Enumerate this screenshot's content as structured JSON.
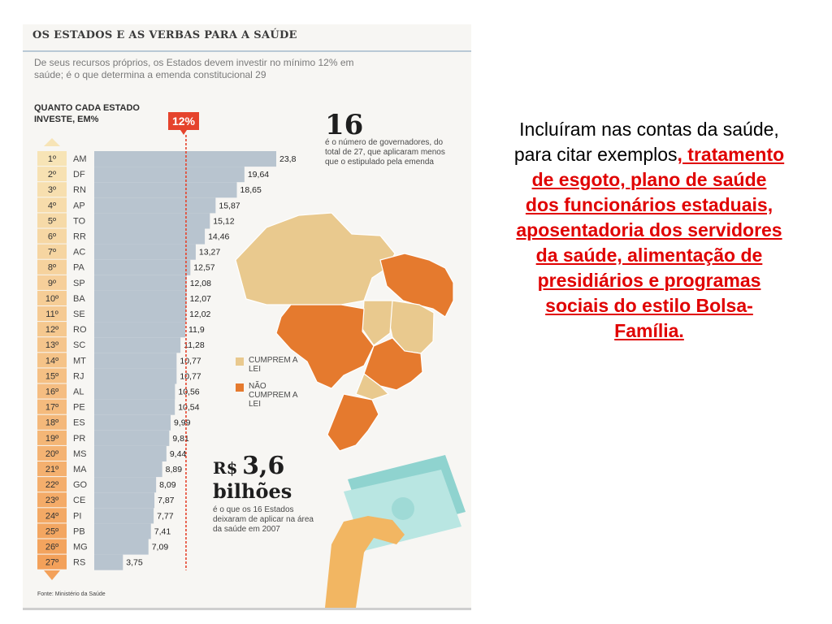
{
  "infographic": {
    "title": "OS ESTADOS E AS VERBAS PARA A SAÚDE",
    "subtitle": "De seus recursos próprios, os Estados devem investir no mínimo 12% em saúde; é o que determina a emenda constitucional 29",
    "chart_heading": "QUANTO CADA ESTADO INVESTE, EM%",
    "threshold_label": "12%",
    "stat1_number": "16",
    "stat1_text": "é o número de governadores, do total de 27, que aplicaram menos que o estipulado pela emenda",
    "legend_cumprem": "CUMPREM A LEI",
    "legend_nao": "NÃO CUMPREM A LEI",
    "money_prefix": "R$",
    "money_value": "3,6",
    "money_unit": "bilhões",
    "money_text": "é o que os 16 Estados deixaram de aplicar na área da saúde em 2007",
    "source": "Fonte: Ministério da Saúde",
    "colors": {
      "comply": "#e9c98e",
      "noncomply": "#e57a2e",
      "rank_top": "#f7e4b6",
      "rank_bottom": "#f3a15a",
      "bar": "#b8c4cf",
      "threshold": "#e5432c"
    }
  },
  "chart_data": {
    "type": "bar",
    "orientation": "horizontal",
    "title": "QUANTO CADA ESTADO INVESTE, EM%",
    "threshold": 12,
    "ranks": [
      "1º",
      "2º",
      "3º",
      "4º",
      "5º",
      "6º",
      "7º",
      "8º",
      "9º",
      "10º",
      "11º",
      "12º",
      "13º",
      "14º",
      "15º",
      "16º",
      "17º",
      "18º",
      "19º",
      "20º",
      "21º",
      "22º",
      "23º",
      "24º",
      "25º",
      "26º",
      "27º"
    ],
    "categories": [
      "AM",
      "DF",
      "RN",
      "AP",
      "TO",
      "RR",
      "AC",
      "PA",
      "SP",
      "BA",
      "SE",
      "RO",
      "SC",
      "MT",
      "RJ",
      "AL",
      "PE",
      "ES",
      "PR",
      "MS",
      "MA",
      "GO",
      "CE",
      "PI",
      "PB",
      "MG",
      "RS"
    ],
    "values": [
      23.8,
      19.64,
      18.65,
      15.87,
      15.12,
      14.46,
      13.27,
      12.57,
      12.08,
      12.07,
      12.02,
      11.9,
      11.28,
      10.77,
      10.77,
      10.56,
      10.54,
      9.99,
      9.81,
      9.44,
      8.89,
      8.09,
      7.87,
      7.77,
      7.41,
      7.09,
      3.75
    ],
    "value_labels": [
      "23,8",
      "19,64",
      "18,65",
      "15,87",
      "15,12",
      "14,46",
      "13,27",
      "12,57",
      "12,08",
      "12,07",
      "12,02",
      "11,9",
      "11,28",
      "10,77",
      "10,77",
      "10,56",
      "10,54",
      "9,99",
      "9,81",
      "9,44",
      "8,89",
      "8,09",
      "7,87",
      "7,77",
      "7,41",
      "7,09",
      "3,75"
    ]
  },
  "map_data": {
    "comply": [
      "AM",
      "DF",
      "RN",
      "AP",
      "TO",
      "RR",
      "AC",
      "PA",
      "SP",
      "BA",
      "SE"
    ],
    "noncomply": [
      "RO",
      "SC",
      "MT",
      "RJ",
      "AL",
      "PE",
      "ES",
      "PR",
      "MS",
      "MA",
      "GO",
      "CE",
      "PI",
      "PB",
      "MG",
      "RS"
    ]
  },
  "slide_text": {
    "plain": "Incluíram nas contas da saúde, para citar exemplos",
    "highlight": ", tratamento de esgoto, plano de saúde dos funcionários estaduais, aposentadoria dos servidores da saúde, alimentação de presidiários e programas sociais do estilo Bolsa-Família."
  }
}
